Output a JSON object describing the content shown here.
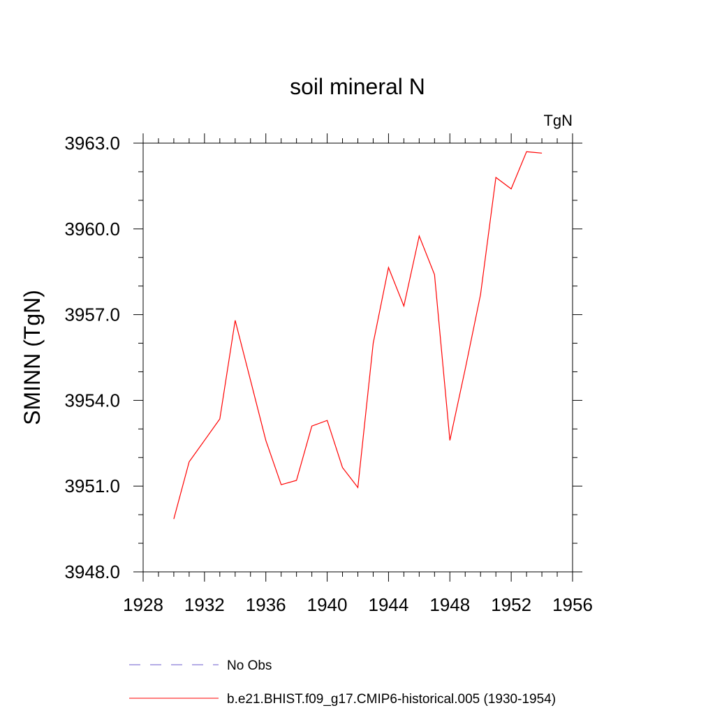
{
  "chart_data": {
    "type": "line",
    "title": "soil mineral N",
    "units_label": "TgN",
    "ylabel": "SMINN  (TgN)",
    "xlabel": "",
    "xlim": [
      1928,
      1956
    ],
    "ylim": [
      3948.0,
      3963.0
    ],
    "x_ticks": [
      1928,
      1932,
      1936,
      1940,
      1944,
      1948,
      1952,
      1956
    ],
    "x_tick_labels": [
      "1928",
      "1932",
      "1936",
      "1940",
      "1944",
      "1948",
      "1952",
      "1956"
    ],
    "y_ticks": [
      3948.0,
      3951.0,
      3954.0,
      3957.0,
      3960.0,
      3963.0
    ],
    "y_tick_labels": [
      "3948.0",
      "3951.0",
      "3954.0",
      "3957.0",
      "3960.0",
      "3963.0"
    ],
    "grid": false,
    "legend_position": "bottom",
    "series": [
      {
        "name": "b.e21.BHIST.f09_g17.CMIP6-historical.005 (1930-1954)",
        "color": "#ff0000",
        "dash": "solid",
        "x": [
          1930,
          1931,
          1932,
          1933,
          1934,
          1935,
          1936,
          1937,
          1938,
          1939,
          1940,
          1941,
          1942,
          1943,
          1944,
          1945,
          1946,
          1947,
          1948,
          1949,
          1950,
          1951,
          1952,
          1953,
          1954
        ],
        "y": [
          3949.85,
          3951.85,
          3952.6,
          3953.35,
          3956.8,
          3954.7,
          3952.6,
          3951.05,
          3951.2,
          3953.1,
          3953.3,
          3951.65,
          3950.95,
          3956.0,
          3958.65,
          3957.3,
          3959.75,
          3958.4,
          3952.6,
          3955.1,
          3957.7,
          3961.8,
          3961.4,
          3962.7,
          3962.65
        ]
      }
    ],
    "legend": [
      {
        "label": "No Obs",
        "color": "#6a5acd",
        "dash": "dashed"
      },
      {
        "label": "b.e21.BHIST.f09_g17.CMIP6-historical.005 (1930-1954)",
        "color": "#ff0000",
        "dash": "solid"
      }
    ]
  }
}
